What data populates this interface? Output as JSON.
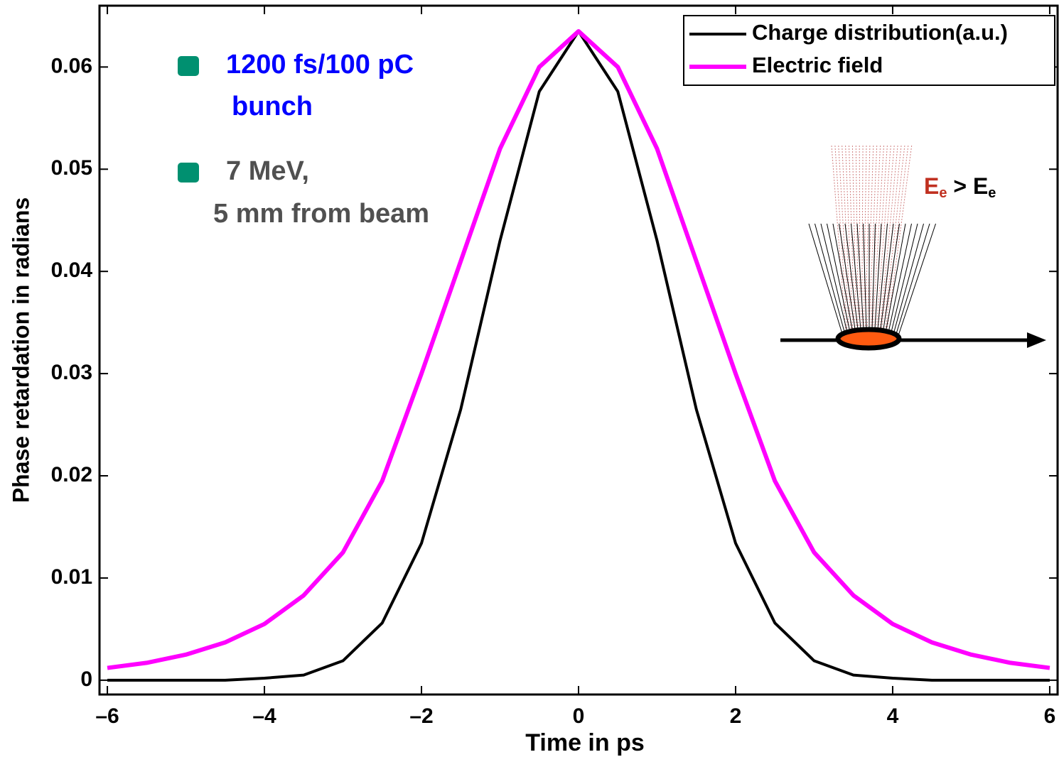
{
  "chart_data": {
    "type": "line",
    "xlabel": "Time in ps",
    "ylabel": "Phase retardation in radians",
    "x": [
      -6,
      -5.5,
      -5,
      -4.5,
      -4,
      -3.5,
      -3,
      -2.5,
      -2,
      -1.5,
      -1,
      -0.5,
      0,
      0.5,
      1,
      1.5,
      2,
      2.5,
      3,
      3.5,
      4,
      4.5,
      5,
      5.5,
      6
    ],
    "series": [
      {
        "name": "Charge distribution(a.u.)",
        "color": "#000000",
        "values": [
          0,
          0,
          0,
          0,
          0.0002,
          0.0005,
          0.0019,
          0.0056,
          0.0134,
          0.0265,
          0.043,
          0.0576,
          0.0635,
          0.0576,
          0.043,
          0.0265,
          0.0134,
          0.0056,
          0.0019,
          0.0005,
          0.0002,
          0,
          0,
          0,
          0
        ]
      },
      {
        "name": "Electric field",
        "color": "#ff00ff",
        "values": [
          0.0012,
          0.0017,
          0.0025,
          0.0037,
          0.0055,
          0.0083,
          0.0125,
          0.0195,
          0.03,
          0.041,
          0.052,
          0.06,
          0.0635,
          0.06,
          0.052,
          0.041,
          0.03,
          0.0195,
          0.0125,
          0.0083,
          0.0055,
          0.0037,
          0.0025,
          0.0017,
          0.0012
        ]
      }
    ],
    "xlim": [
      -6.1,
      6.1
    ],
    "ylim": [
      -0.0014,
      0.066
    ],
    "xticks": [
      {
        "value": -6,
        "label": "–6"
      },
      {
        "value": -4,
        "label": "–4"
      },
      {
        "value": -2,
        "label": "–2"
      },
      0,
      2,
      4,
      6
    ],
    "yticks": [
      0,
      0.01,
      0.02,
      0.03,
      0.04,
      0.05,
      0.06
    ],
    "legend": "upper right",
    "annotations": [
      "1200 fs/100 pC",
      "bunch",
      "7 MeV,",
      "5 mm from beam"
    ],
    "inset_label": [
      "E",
      "e",
      " > ",
      "E",
      "e"
    ]
  }
}
